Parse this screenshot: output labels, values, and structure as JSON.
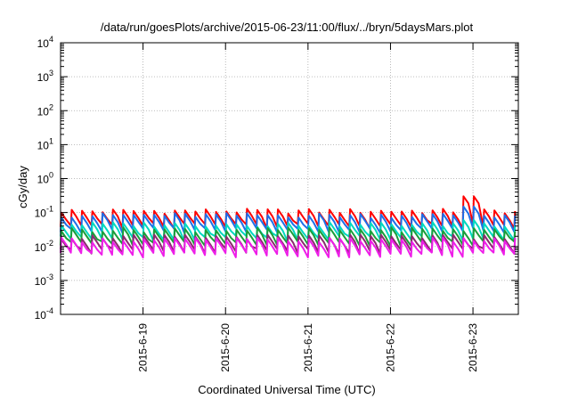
{
  "chart_data": {
    "type": "line",
    "title": "/data/run/goesPlots/archive/2015-06-23/11:00/flux/../bryn/5daysMars.plot",
    "xlabel": "Coordinated Universal Time (UTC)",
    "ylabel": "cGy/day",
    "y_scale": "log",
    "ylim": [
      0.0001,
      10000
    ],
    "y_ticks": [
      {
        "base": "10",
        "exp": "4"
      },
      {
        "base": "10",
        "exp": "3"
      },
      {
        "base": "10",
        "exp": "2"
      },
      {
        "base": "10",
        "exp": "1"
      },
      {
        "base": "10",
        "exp": "0"
      },
      {
        "base": "10",
        "exp": "-1"
      },
      {
        "base": "10",
        "exp": "-2"
      },
      {
        "base": "10",
        "exp": "-3"
      },
      {
        "base": "10",
        "exp": "-4"
      }
    ],
    "x_tick_labels": [
      "2015-6-19",
      "2015-6-20",
      "2015-6-21",
      "2015-6-22",
      "2015-6-23"
    ],
    "x_tick_values_days": [
      1,
      2,
      3,
      4,
      5
    ],
    "x_range_days": [
      0,
      5.55
    ],
    "grid": true,
    "colors": {
      "red": "#ff0000",
      "blue": "#1e6fe8",
      "cyan": "#00d8c0",
      "green": "#1a9e3a",
      "purple": "#8b2a6e",
      "magenta": "#ee1ee8"
    },
    "series": [
      {
        "color_key": "red",
        "baseline": 0.06,
        "amplitude": 1.8,
        "extra_spike_day": 4.92,
        "extra_spike_value": 0.3
      },
      {
        "color_key": "blue",
        "baseline": 0.045,
        "amplitude": 1.8,
        "extra_spike_day": 4.92,
        "extra_spike_value": 0.15
      },
      {
        "color_key": "cyan",
        "baseline": 0.026,
        "amplitude": 1.7,
        "extra_spike_day": 4.92,
        "extra_spike_value": 0.06
      },
      {
        "color_key": "green",
        "baseline": 0.018,
        "amplitude": 1.7,
        "extra_spike_day": null,
        "extra_spike_value": null
      },
      {
        "color_key": "purple",
        "baseline": 0.011,
        "amplitude": 1.7,
        "extra_spike_day": null,
        "extra_spike_value": null
      },
      {
        "color_key": "magenta",
        "baseline": 0.0085,
        "amplitude": 1.8,
        "extra_spike_day": null,
        "extra_spike_value": null
      }
    ],
    "pulse_period_days": 0.125
  }
}
